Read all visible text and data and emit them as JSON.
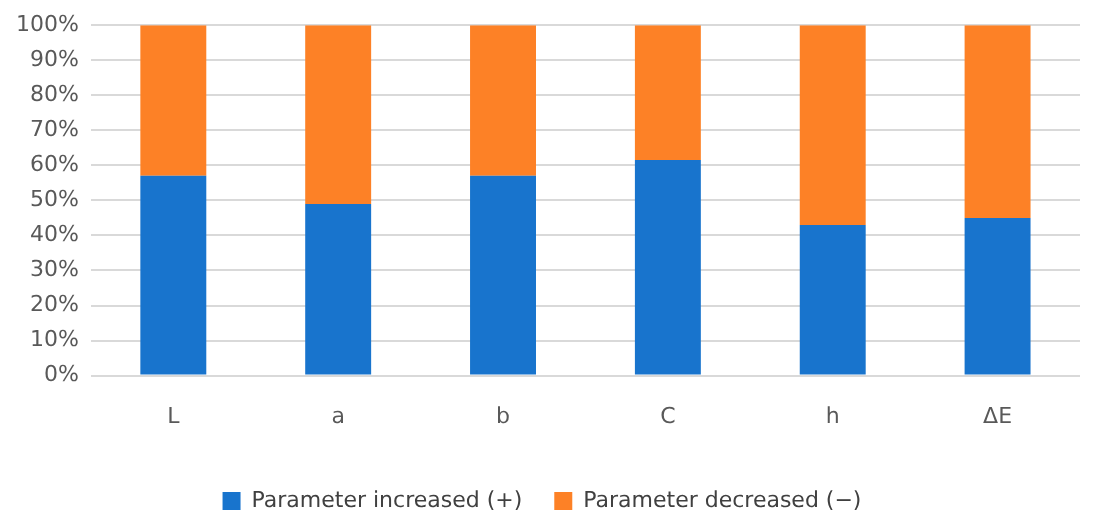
{
  "chart_data": {
    "type": "bar",
    "stacked": true,
    "categories": [
      "L",
      "a",
      "b",
      "C",
      "h",
      "ΔE"
    ],
    "series": [
      {
        "name": "Parameter increased (+)",
        "color": "#1874cd",
        "values": [
          57,
          49,
          57,
          61.5,
          43,
          45
        ]
      },
      {
        "name": "Parameter decreased (−)",
        "color": "#fd8126",
        "values": [
          43,
          51,
          43,
          38.5,
          57,
          55
        ]
      }
    ],
    "ylim": [
      0,
      100
    ],
    "yticks": [
      {
        "value": 0,
        "label": "0%"
      },
      {
        "value": 10,
        "label": "10%"
      },
      {
        "value": 20,
        "label": "20%"
      },
      {
        "value": 30,
        "label": "30%"
      },
      {
        "value": 40,
        "label": "40%"
      },
      {
        "value": 50,
        "label": "50%"
      },
      {
        "value": 60,
        "label": "60%"
      },
      {
        "value": 70,
        "label": "70%"
      },
      {
        "value": 80,
        "label": "80%"
      },
      {
        "value": 90,
        "label": "90%"
      },
      {
        "value": 100,
        "label": "100%"
      }
    ],
    "grid": "y",
    "legend": "bottom"
  }
}
